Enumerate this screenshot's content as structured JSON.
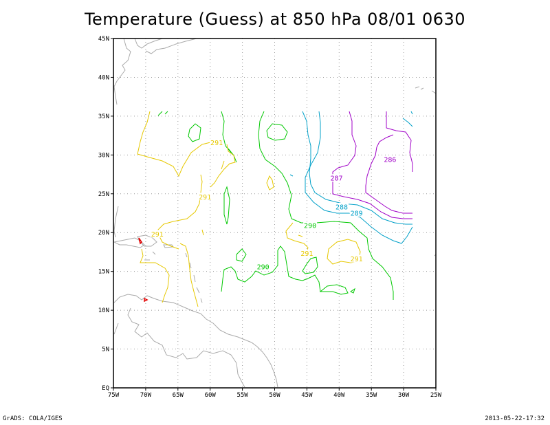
{
  "title": "Temperature (Guess) at 850 hPa 08/01 0630",
  "footer": {
    "left": "GrADS: COLA/IGES",
    "right": "2013-05-22-17:32"
  },
  "map": {
    "lon_range": [
      -75,
      -25
    ],
    "lat_range": [
      0,
      45
    ],
    "x_ticks": [
      "75W",
      "70W",
      "65W",
      "60W",
      "55W",
      "50W",
      "45W",
      "40W",
      "35W",
      "30W",
      "25W"
    ],
    "y_ticks": [
      "EQ",
      "5N",
      "10N",
      "15N",
      "20N",
      "25N",
      "30N",
      "35N",
      "40N",
      "45N"
    ],
    "grid": "dotted"
  },
  "contours": {
    "colors": {
      "286": "#a000c8",
      "287": "#a000c8",
      "288": "#00a0c8",
      "289": "#00a0c8",
      "290": "#00c800",
      "291": "#e6c800",
      "292": "#e60000"
    },
    "labels": [
      {
        "text": "286",
        "lon": -32.1,
        "lat": 29.4,
        "level": "286"
      },
      {
        "text": "287",
        "lon": -40.4,
        "lat": 27.0,
        "level": "287"
      },
      {
        "text": "288",
        "lon": -39.6,
        "lat": 23.3,
        "level": "288"
      },
      {
        "text": "289",
        "lon": -37.3,
        "lat": 22.5,
        "level": "289"
      },
      {
        "text": "290",
        "lon": -44.5,
        "lat": 20.9,
        "level": "290"
      },
      {
        "text": "290",
        "lon": -51.8,
        "lat": 15.6,
        "level": "290"
      },
      {
        "text": "291",
        "lon": -59.0,
        "lat": 31.6,
        "level": "291"
      },
      {
        "text": "291",
        "lon": -60.8,
        "lat": 24.6,
        "level": "291"
      },
      {
        "text": "291",
        "lon": -68.2,
        "lat": 19.8,
        "level": "291"
      },
      {
        "text": "291",
        "lon": -45.0,
        "lat": 17.3,
        "level": "291"
      },
      {
        "text": "291",
        "lon": -37.3,
        "lat": 16.6,
        "level": "291"
      }
    ]
  }
}
